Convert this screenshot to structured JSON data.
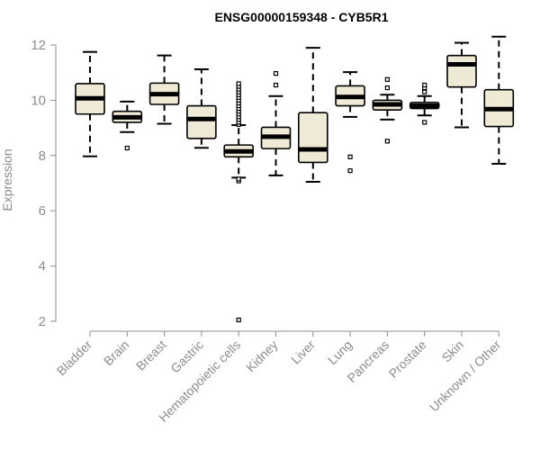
{
  "chart_data": {
    "type": "boxplot",
    "title": "ENSG00000159348 - CYB5R1",
    "xlabel": "",
    "ylabel": "Expression",
    "ylim": [
      2,
      12
    ],
    "yticks": [
      2,
      4,
      6,
      8,
      10,
      12
    ],
    "grid": false,
    "legend": "none",
    "categories": [
      "Bladder",
      "Brain",
      "Breast",
      "Gastric",
      "Hematopoietic cells",
      "Kidney",
      "Liver",
      "Lung",
      "Pancreas",
      "Prostate",
      "Skin",
      "Unknown / Other"
    ],
    "boxes": [
      {
        "category": "Bladder",
        "whisker_low": 7.97,
        "q1": 9.5,
        "median": 10.07,
        "q3": 10.6,
        "whisker_high": 11.75,
        "outliers": []
      },
      {
        "category": "Brain",
        "whisker_low": 8.85,
        "q1": 9.2,
        "median": 9.38,
        "q3": 9.6,
        "whisker_high": 9.95,
        "outliers": [
          8.27
        ]
      },
      {
        "category": "Breast",
        "whisker_low": 9.15,
        "q1": 9.85,
        "median": 10.22,
        "q3": 10.62,
        "whisker_high": 11.62,
        "outliers": []
      },
      {
        "category": "Gastric",
        "whisker_low": 8.28,
        "q1": 8.62,
        "median": 9.32,
        "q3": 9.8,
        "whisker_high": 11.12,
        "outliers": []
      },
      {
        "category": "Hematopoietic cells",
        "whisker_low": 7.2,
        "q1": 7.95,
        "median": 8.15,
        "q3": 8.38,
        "whisker_high": 9.1,
        "outliers": [
          2.05,
          7.08,
          7.15,
          9.12,
          9.2,
          9.3,
          9.4,
          9.5,
          9.6,
          9.7,
          9.8,
          9.9,
          10.0,
          10.1,
          10.2,
          10.3,
          10.4,
          10.5,
          10.6
        ]
      },
      {
        "category": "Kidney",
        "whisker_low": 7.28,
        "q1": 8.25,
        "median": 8.68,
        "q3": 9.02,
        "whisker_high": 10.15,
        "outliers": [
          10.55,
          10.97
        ]
      },
      {
        "category": "Liver",
        "whisker_low": 7.05,
        "q1": 7.75,
        "median": 8.22,
        "q3": 9.55,
        "whisker_high": 11.9,
        "outliers": []
      },
      {
        "category": "Lung",
        "whisker_low": 9.4,
        "q1": 9.8,
        "median": 10.12,
        "q3": 10.52,
        "whisker_high": 11.02,
        "outliers": [
          7.45,
          7.95
        ]
      },
      {
        "category": "Pancreas",
        "whisker_low": 9.3,
        "q1": 9.65,
        "median": 9.85,
        "q3": 10.0,
        "whisker_high": 10.2,
        "outliers": [
          8.52,
          10.45,
          10.75
        ]
      },
      {
        "category": "Prostate",
        "whisker_low": 9.45,
        "q1": 9.7,
        "median": 9.8,
        "q3": 9.92,
        "whisker_high": 10.15,
        "outliers": [
          9.2,
          10.3,
          10.45,
          10.55
        ]
      },
      {
        "category": "Skin",
        "whisker_low": 9.02,
        "q1": 10.48,
        "median": 11.3,
        "q3": 11.62,
        "whisker_high": 12.08,
        "outliers": []
      },
      {
        "category": "Unknown / Other",
        "whisker_low": 7.7,
        "q1": 9.05,
        "median": 9.68,
        "q3": 10.38,
        "whisker_high": 12.3,
        "outliers": []
      }
    ],
    "colors": {
      "box_fill": "#eeead5",
      "box_stroke": "#000000",
      "median": "#000000",
      "axis": "#8c8c8c",
      "title": "#000000"
    }
  }
}
